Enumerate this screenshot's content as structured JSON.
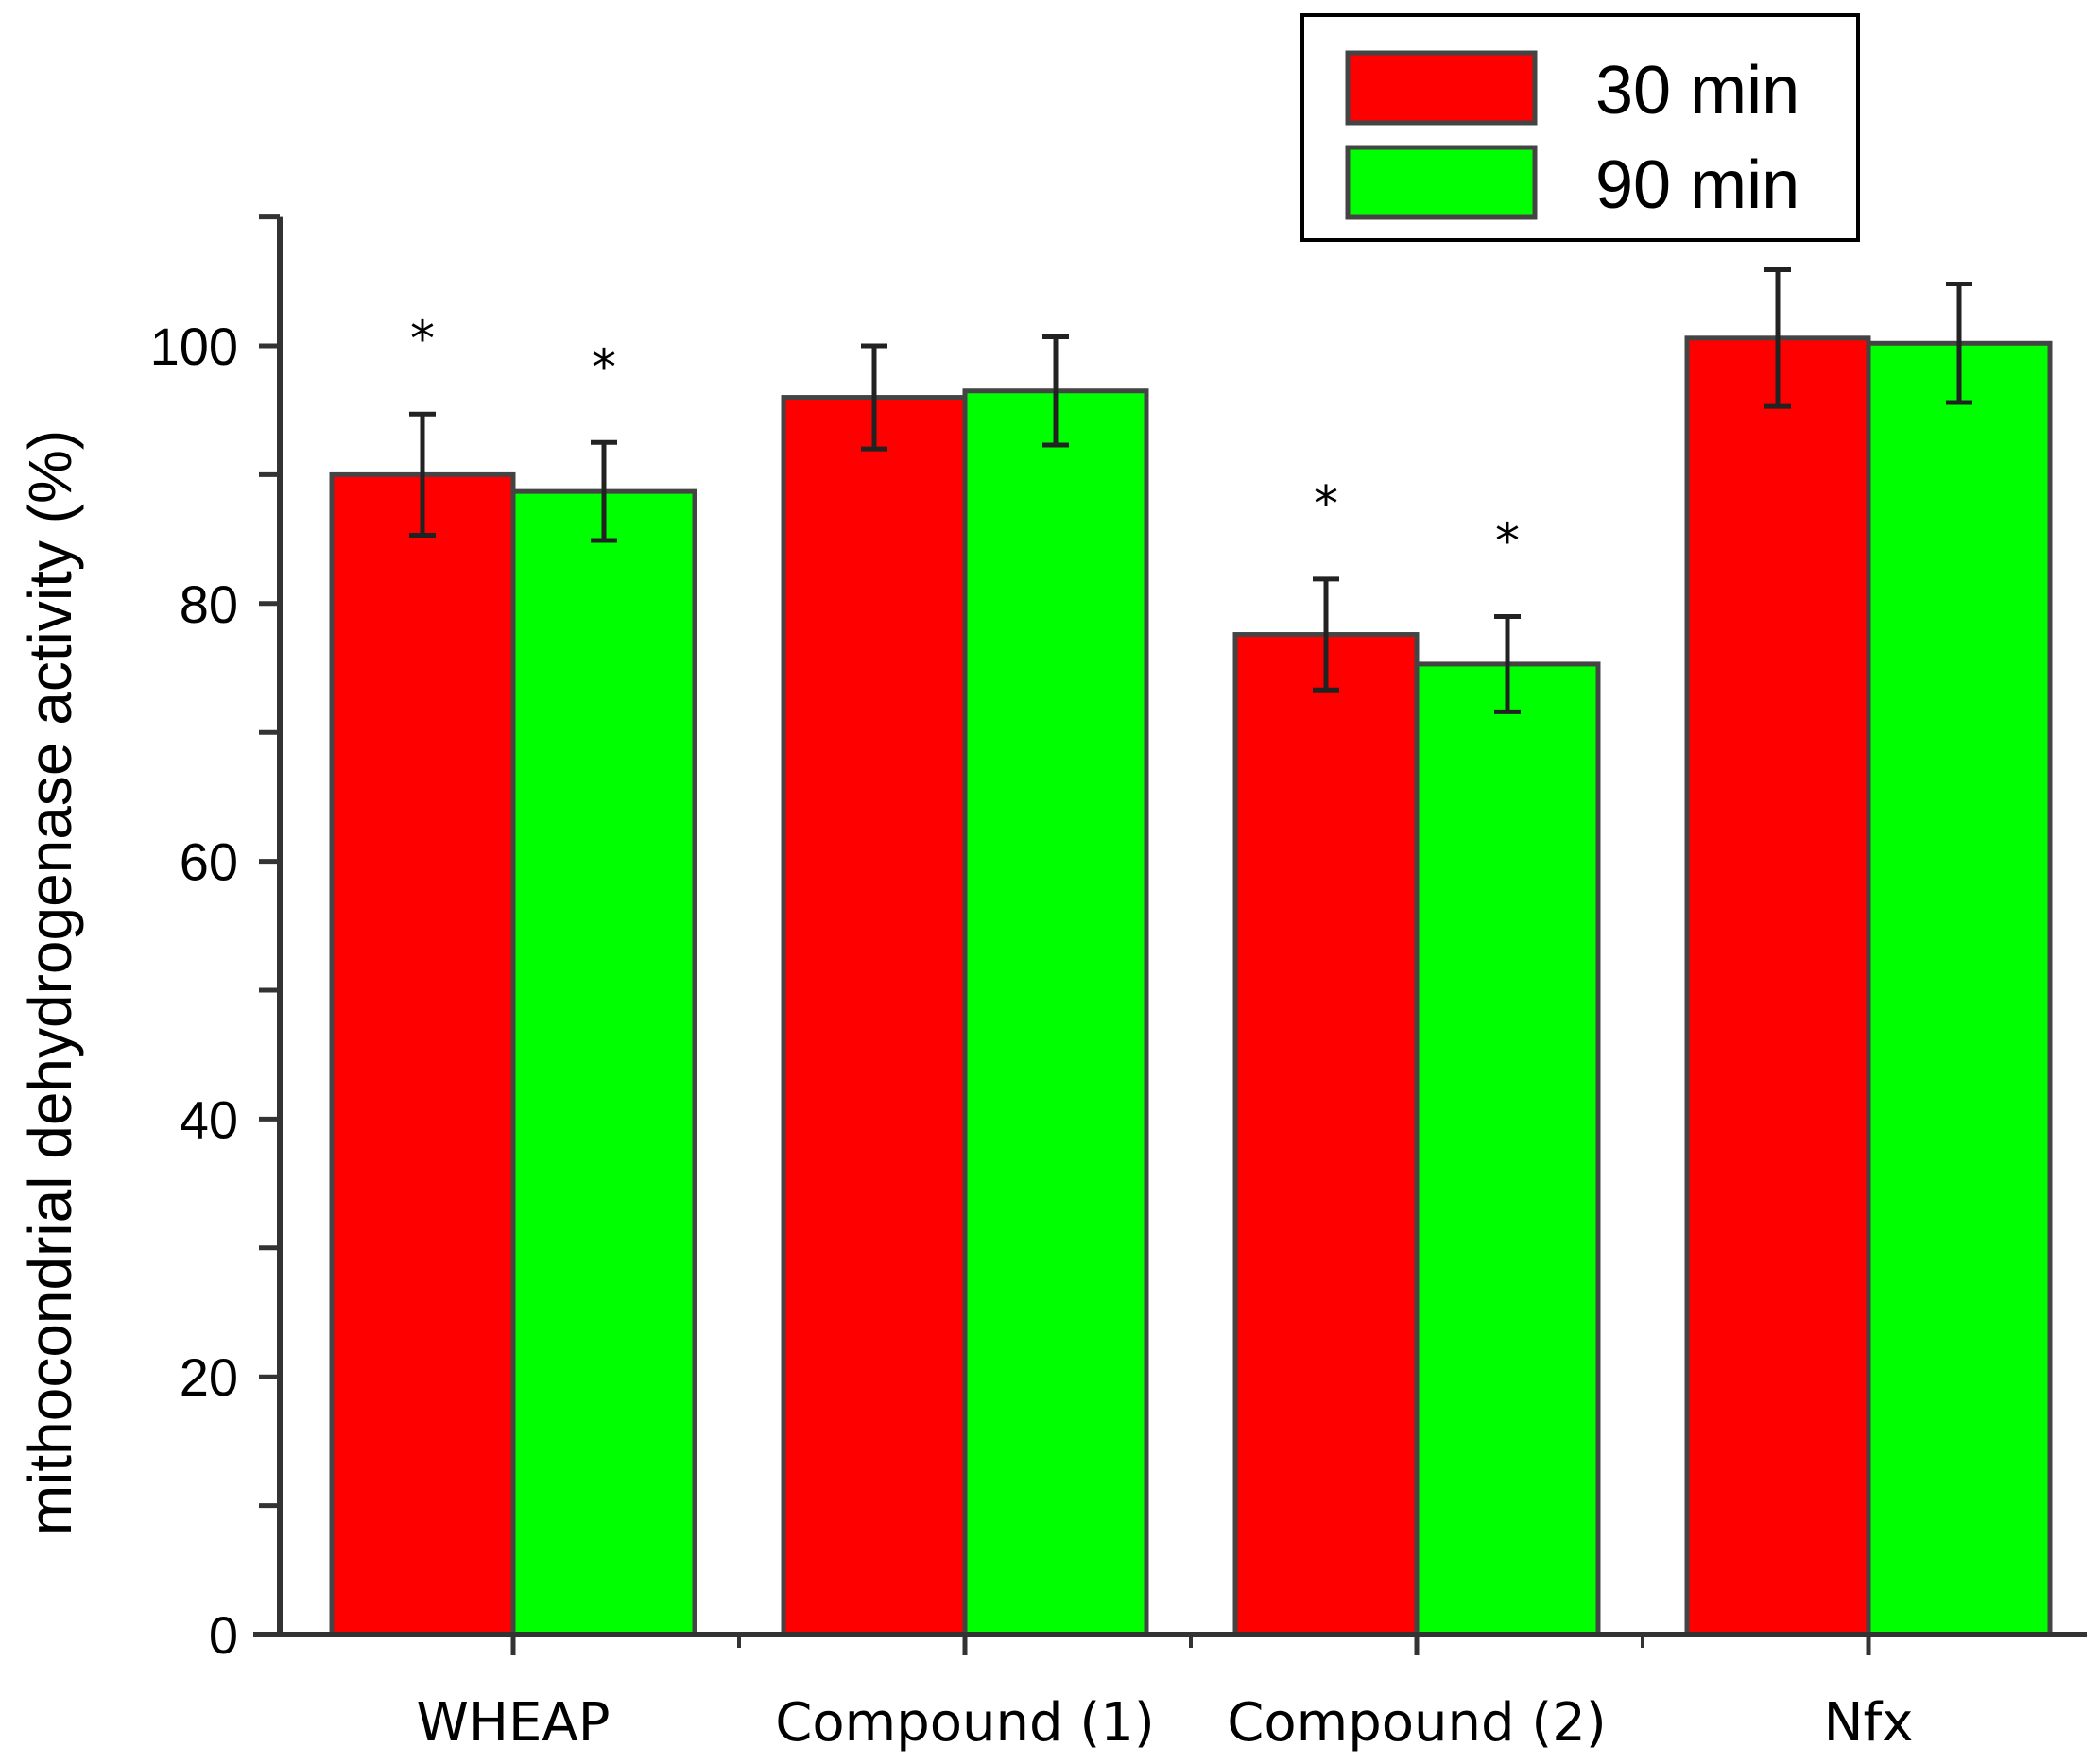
{
  "chart_data": {
    "type": "bar",
    "title": "",
    "xlabel": "",
    "ylabel": "mithocondrial dehydrogenase activity (%)",
    "ylim": [
      0,
      110
    ],
    "yticks": [
      0,
      20,
      40,
      60,
      80,
      100
    ],
    "categories": [
      "WHEAP",
      "Compound (1)",
      "Compound (2)",
      "Nfx"
    ],
    "series": [
      {
        "name": "30 min",
        "color": "#ff0000",
        "values": [
          90.0,
          96.0,
          77.6,
          100.6
        ],
        "errors": [
          4.7,
          4.0,
          4.3,
          5.3
        ],
        "annotations": [
          "*",
          "",
          "*",
          ""
        ]
      },
      {
        "name": "90 min",
        "color": "#00ff00",
        "values": [
          88.7,
          96.5,
          75.3,
          100.2
        ],
        "errors": [
          3.8,
          4.2,
          3.7,
          4.6
        ],
        "annotations": [
          "*",
          "",
          "*",
          ""
        ]
      }
    ],
    "legend": {
      "position": "top-right",
      "labels": [
        "30 min",
        "90 min"
      ]
    }
  }
}
